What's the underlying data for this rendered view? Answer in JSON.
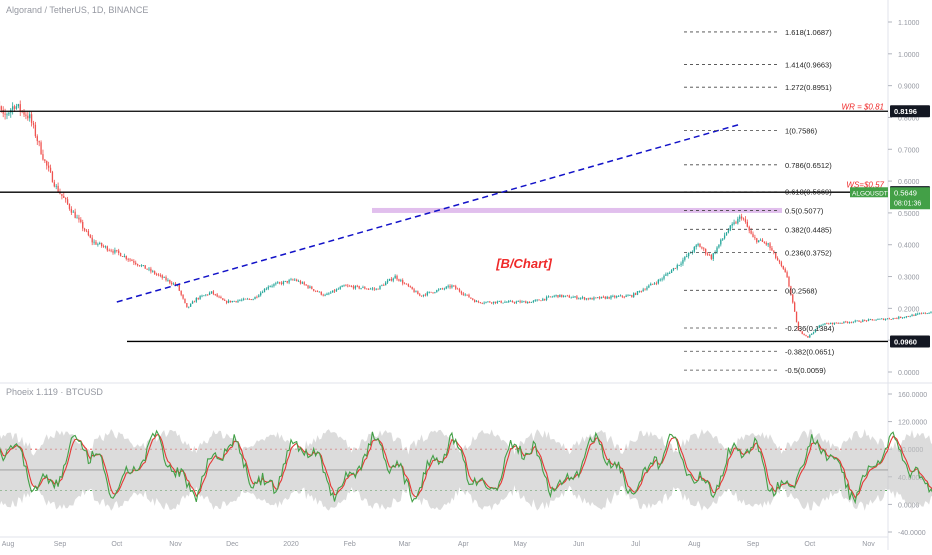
{
  "header": {
    "symbol_title": "Algorand / TetherUS, 1D, BINANCE",
    "indicator_title": "Phoeix 1.119 · BTCUSD"
  },
  "colors": {
    "up": "#26a69a",
    "down": "#ef5350",
    "trendline": "#1212c8",
    "support_zone": "#dcb4ea",
    "label_red": "#ef2a2a",
    "osc_green": "#43a047",
    "osc_red": "#e53935",
    "osc_band": "#c4c4c4",
    "current_price_bg": "#43a047"
  },
  "chart_data": [
    {
      "type": "candlestick",
      "title": "Algorand / TetherUS, 1D, BINANCE",
      "x_axis": {
        "labels": [
          "Aug",
          "Sep",
          "Oct",
          "Nov",
          "Dec",
          "2020",
          "Feb",
          "Mar",
          "Apr",
          "May",
          "Jun",
          "Jul",
          "Aug",
          "Sep",
          "Oct",
          "Nov"
        ]
      },
      "y_axis": {
        "min": 0.0,
        "max": 1.1,
        "ticks": [
          1.1,
          1.0,
          0.9,
          0.8,
          0.7,
          0.6,
          0.5,
          0.4,
          0.3,
          0.2,
          0.1,
          0.0
        ],
        "tick_labels": [
          "1.1000",
          "1.0000",
          "0.9000",
          "0.8000",
          "0.7000",
          "0.6000",
          "0.5000",
          "0.4000",
          "0.3000",
          "0.2000",
          "0.1000",
          "0.0000"
        ]
      },
      "price_path": {
        "unit": "USDT",
        "date_range": [
          "2019-07-25",
          "2020-08-27"
        ],
        "anchors": [
          [
            0,
            0.8
          ],
          [
            4,
            0.86
          ],
          [
            8,
            0.8
          ],
          [
            14,
            0.84
          ],
          [
            22,
            0.8
          ],
          [
            30,
            0.66
          ],
          [
            36,
            0.58
          ],
          [
            45,
            0.5
          ],
          [
            55,
            0.41
          ],
          [
            70,
            0.37
          ],
          [
            85,
            0.32
          ],
          [
            100,
            0.27
          ],
          [
            105,
            0.2
          ],
          [
            110,
            0.23
          ],
          [
            118,
            0.25
          ],
          [
            125,
            0.22
          ],
          [
            140,
            0.23
          ],
          [
            148,
            0.27
          ],
          [
            162,
            0.29
          ],
          [
            178,
            0.24
          ],
          [
            188,
            0.27
          ],
          [
            205,
            0.26
          ],
          [
            215,
            0.3
          ],
          [
            228,
            0.24
          ],
          [
            245,
            0.27
          ],
          [
            258,
            0.22
          ],
          [
            272,
            0.22
          ],
          [
            287,
            0.22
          ],
          [
            300,
            0.24
          ],
          [
            318,
            0.23
          ],
          [
            340,
            0.24
          ],
          [
            355,
            0.29
          ],
          [
            365,
            0.34
          ],
          [
            375,
            0.4
          ],
          [
            382,
            0.36
          ],
          [
            390,
            0.44
          ],
          [
            398,
            0.49
          ],
          [
            404,
            0.42
          ],
          [
            412,
            0.4
          ],
          [
            422,
            0.3
          ],
          [
            428,
            0.13
          ],
          [
            433,
            0.11
          ],
          [
            440,
            0.15
          ],
          [
            460,
            0.16
          ],
          [
            480,
            0.17
          ],
          [
            500,
            0.19
          ],
          [
            512,
            0.22
          ],
          [
            525,
            0.19
          ],
          [
            545,
            0.2
          ],
          [
            560,
            0.21
          ],
          [
            580,
            0.24
          ],
          [
            595,
            0.24
          ],
          [
            605,
            0.23
          ],
          [
            620,
            0.24
          ],
          [
            632,
            0.21
          ],
          [
            645,
            0.23
          ],
          [
            660,
            0.3
          ],
          [
            668,
            0.38
          ],
          [
            675,
            0.35
          ],
          [
            690,
            0.32
          ],
          [
            700,
            0.31
          ],
          [
            708,
            0.38
          ],
          [
            714,
            0.44
          ],
          [
            718,
            0.52
          ],
          [
            722,
            0.72
          ],
          [
            726,
            0.64
          ],
          [
            731,
            0.6
          ],
          [
            735,
            0.52
          ],
          [
            738,
            0.56
          ]
        ]
      },
      "horizontal_levels": [
        {
          "value": 0.8196,
          "label": "0.8196",
          "style": "solid-black"
        },
        {
          "value": 0.5652,
          "label": "0.5652",
          "style": "solid-black"
        },
        {
          "value": 0.096,
          "label": "0.0960",
          "style": "solid-black"
        }
      ],
      "support_zone": {
        "value": 0.5077
      },
      "trendline": {
        "from": {
          "date": "2019-10-01",
          "price": 0.22
        },
        "to": {
          "date": "2020-08-26",
          "price": 0.78
        },
        "style": "dashed-blue"
      },
      "fibonacci": [
        {
          "ratio": "1.618",
          "value": 1.0687,
          "label": "1.618(1.0687)"
        },
        {
          "ratio": "1.414",
          "value": 0.9663,
          "label": "1.414(0.9663)"
        },
        {
          "ratio": "1.272",
          "value": 0.8951,
          "label": "1.272(0.8951)"
        },
        {
          "ratio": "1",
          "value": 0.7586,
          "label": "1(0.7586)"
        },
        {
          "ratio": "0.786",
          "value": 0.6512,
          "label": "0.786(0.6512)"
        },
        {
          "ratio": "0.618",
          "value": 0.5669,
          "label": "0.618(0.5669)"
        },
        {
          "ratio": "0.5",
          "value": 0.5077,
          "label": "0.5(0.5077)"
        },
        {
          "ratio": "0.382",
          "value": 0.4485,
          "label": "0.382(0.4485)"
        },
        {
          "ratio": "0.236",
          "value": 0.3752,
          "label": "0.236(0.3752)"
        },
        {
          "ratio": "0",
          "value": 0.2568,
          "label": "0(0.2568)"
        },
        {
          "ratio": "-0.236",
          "value": 0.1384,
          "label": "-0.236(0.1384)"
        },
        {
          "ratio": "-0.382",
          "value": 0.0651,
          "label": "-0.382(0.0651)"
        },
        {
          "ratio": "-0.5",
          "value": 0.0059,
          "label": "-0.5(0.0059)"
        }
      ],
      "annotations": [
        {
          "text": "WR = $0.81",
          "price": 0.81
        },
        {
          "text": "WS=$0.57",
          "price": 0.57
        },
        {
          "text": "[B/Chart]"
        }
      ],
      "current_price": {
        "symbol": "ALGOUSDT",
        "value": "0.5649",
        "countdown": "08:01:36"
      }
    },
    {
      "type": "line",
      "title": "Phoeix 1.119 · BTCUSD",
      "y_axis": {
        "min": -40,
        "max": 160,
        "ticks": [
          160,
          120,
          80,
          40,
          0,
          -40
        ],
        "tick_labels": [
          "160.0000",
          "120.0000",
          "80.0000",
          "40.0000",
          "0.0000",
          "-40.0000"
        ]
      },
      "reference_levels": [
        {
          "value": 80,
          "style": "dotted-red"
        },
        {
          "value": 50,
          "style": "solid-gray"
        },
        {
          "value": 20,
          "style": "dotted-green"
        }
      ],
      "series": [
        {
          "color": "green",
          "role": "fast"
        },
        {
          "color": "red",
          "role": "signal"
        },
        {
          "color": "gray",
          "role": "band"
        }
      ]
    }
  ]
}
